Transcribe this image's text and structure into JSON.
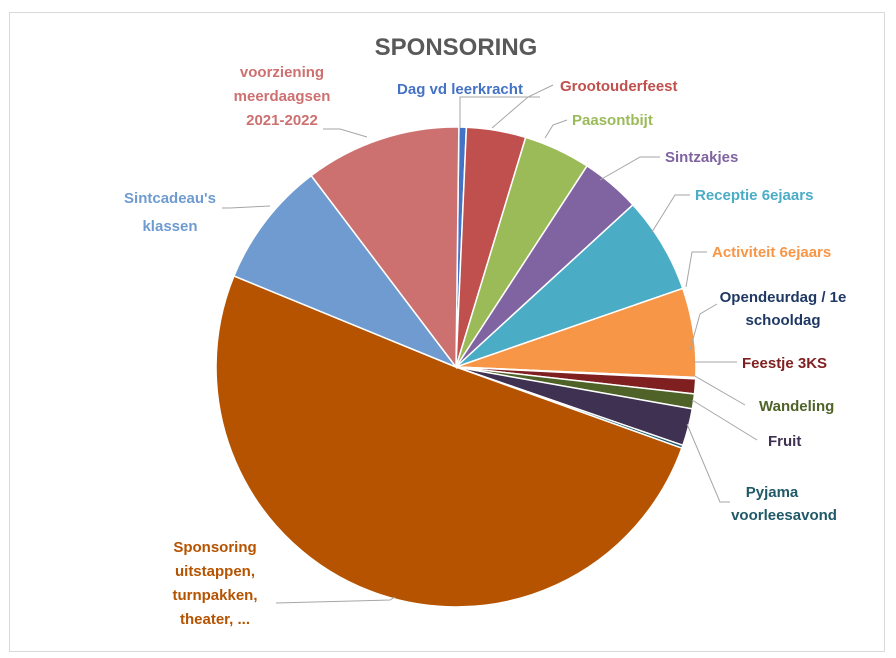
{
  "chart_data": {
    "type": "pie",
    "title": "SPONSORING",
    "legend": "none (data labels with leader lines)",
    "slices": [
      {
        "label": "Dag vd leerkracht",
        "value": 0.5,
        "color": "#4472c4"
      },
      {
        "label": "Grootouderfeest",
        "value": 4.0,
        "color": "#c0504d"
      },
      {
        "label": "Paasontbijt",
        "value": 4.5,
        "color": "#9bbb59"
      },
      {
        "label": "Sintzakjes",
        "value": 4.0,
        "color": "#8064a2"
      },
      {
        "label": "Receptie 6ejaars",
        "value": 6.5,
        "color": "#4bacc6"
      },
      {
        "label": "Activiteit 6ejaars",
        "value": 6.0,
        "color": "#f79646"
      },
      {
        "label": "Opendeurdag / 1e schooldag",
        "value": 0.1,
        "color": "#1f3864"
      },
      {
        "label": "Feestje 3KS",
        "value": 1.0,
        "color": "#7f1f1f"
      },
      {
        "label": "Wandeling",
        "value": 1.0,
        "color": "#4f6228"
      },
      {
        "label": "Fruit",
        "value": 2.5,
        "color": "#3f3151"
      },
      {
        "label": "Pyjama voorleesavond",
        "value": 0.2,
        "color": "#215968"
      },
      {
        "label": "Sponsoring uitstappen, turnpakken, theater, ...",
        "value": 50.7,
        "color": "#b55300"
      },
      {
        "label": "Sintcadeau's klassen",
        "value": 8.5,
        "color": "#6f9bd1"
      },
      {
        "label": "voorziening meerdaagsen 2021-2022",
        "value": 10.5,
        "color": "#cd7070"
      }
    ]
  },
  "labels": {
    "dag": "Dag vd leerkracht",
    "groot": "Grootouderfeest",
    "paas": "Paasontbijt",
    "sintz": "Sintzakjes",
    "recep": "Receptie 6ejaars",
    "activ": "Activiteit 6ejaars",
    "open1": "Opendeurdag / 1e",
    "open2": "schooldag",
    "feest": "Feestje 3KS",
    "wand": "Wandeling",
    "fruit": "Fruit",
    "pyj1": "Pyjama",
    "pyj2": "voorleesavond",
    "spon1": "Sponsoring",
    "spon2": "uitstappen,",
    "spon3": "turnpakken,",
    "spon4": "theater, ...",
    "sinc1": "Sintcadeau's",
    "sinc2": "klassen",
    "voor1": "voorziening",
    "voor2": "meerdaagsen",
    "voor3": "2021-2022"
  },
  "label_colors": {
    "dag": "#4472c4",
    "groot": "#c0504d",
    "paas": "#9bbb59",
    "sintz": "#8064a2",
    "recep": "#4bacc6",
    "activ": "#f79646",
    "open": "#1f3864",
    "feest": "#7f1f1f",
    "wand": "#4f6228",
    "fruit": "#3f3151",
    "pyj": "#215968",
    "spon": "#b55300",
    "sinc": "#6f9bd1",
    "voor": "#cd7070"
  }
}
